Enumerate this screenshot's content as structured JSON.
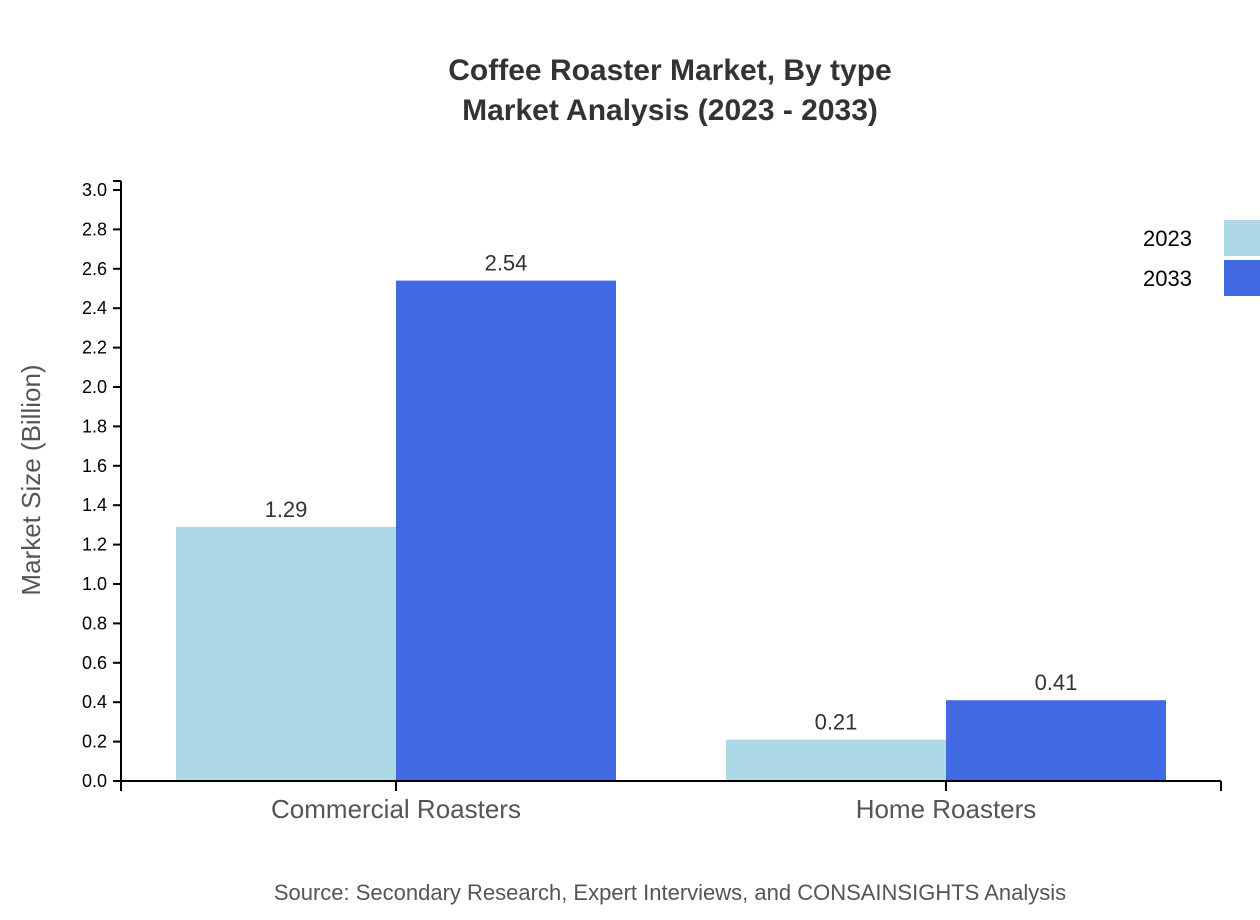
{
  "chart_data": {
    "type": "bar",
    "title": "Coffee Roaster Market, By type",
    "subtitle": "Market Analysis (2023 - 2033)",
    "xlabel": "",
    "ylabel": "Market Size (Billion)",
    "ylim": [
      0,
      3.0
    ],
    "yticks": [
      "0.0",
      "0.2",
      "0.4",
      "0.6",
      "0.8",
      "1.0",
      "1.2",
      "1.4",
      "1.6",
      "1.8",
      "2.0",
      "2.2",
      "2.4",
      "2.6",
      "2.8",
      "3.0"
    ],
    "categories": [
      "Commercial Roasters",
      "Home Roasters"
    ],
    "series": [
      {
        "name": "2023",
        "values": [
          1.29,
          0.21
        ],
        "color": "#ADD8E6"
      },
      {
        "name": "2033",
        "values": [
          2.54,
          0.41
        ],
        "color": "#4169E1"
      }
    ],
    "legend_position": "top-right",
    "grid": false,
    "source": "Source: Secondary Research, Expert Interviews, and CONSAINSIGHTS Analysis"
  }
}
